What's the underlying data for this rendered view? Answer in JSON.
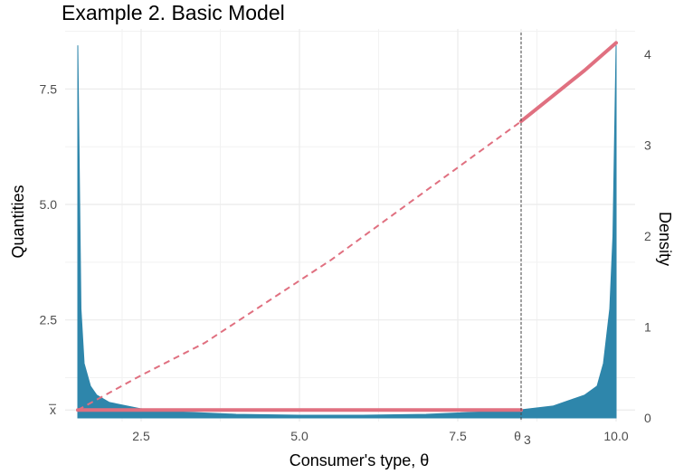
{
  "chart_data": {
    "type": "line",
    "title": "Example 2. Basic Model",
    "xlabel": "Consumer's type, θ",
    "ylabel": "Quantities",
    "ylabel_right": "Density",
    "xlim": [
      1.3,
      10.3
    ],
    "ylim": [
      0.3,
      8.8
    ],
    "ylim_right": [
      -0.04,
      4.28
    ],
    "x_ticks": [
      2.5,
      5.0,
      7.5,
      10.0
    ],
    "x_tick_labels": [
      "2.5",
      "5.0",
      "7.5",
      "10.0"
    ],
    "y_ticks": [
      2.5,
      5.0,
      7.5
    ],
    "y_tick_labels": [
      "2.5",
      "5.0",
      "7.5"
    ],
    "y_ticks_right": [
      0,
      1,
      2,
      3,
      4
    ],
    "y_tick_labels_right": [
      "0",
      "1",
      "2",
      "3",
      "4"
    ],
    "special_ticks": {
      "theta3": {
        "x": 8.5,
        "label": "θ",
        "subscript": "3"
      },
      "xbar": {
        "y": 0.55,
        "label": "x"
      }
    },
    "grid": true,
    "series": [
      {
        "role": "pooling-quantity",
        "style": "solid",
        "color": "#e07080",
        "x": [
          1.5,
          8.5
        ],
        "y": [
          0.55,
          0.55
        ]
      },
      {
        "role": "unconstrained-quantity-dashed",
        "style": "dashed",
        "color": "#e07080",
        "x": [
          1.5,
          2.5,
          3.5,
          4.5,
          5.5,
          6.5,
          7.5,
          8.5
        ],
        "y": [
          0.55,
          1.3,
          2.0,
          2.9,
          3.8,
          4.8,
          5.8,
          6.8
        ]
      },
      {
        "role": "separating-quantity",
        "style": "solid",
        "color": "#e07080",
        "x": [
          8.5,
          9.0,
          9.5,
          10.0
        ],
        "y": [
          6.8,
          7.35,
          7.9,
          8.5
        ]
      },
      {
        "role": "density",
        "style": "area",
        "color": "#2e86ab",
        "axis": "right",
        "x": [
          1.5,
          1.55,
          1.6,
          1.7,
          1.8,
          2.0,
          2.5,
          3.0,
          4.0,
          5.0,
          6.0,
          7.0,
          8.0,
          8.5,
          9.0,
          9.5,
          9.7,
          9.8,
          9.9,
          9.95,
          10.0
        ],
        "y": [
          4.1,
          1.2,
          0.6,
          0.35,
          0.25,
          0.17,
          0.1,
          0.07,
          0.04,
          0.03,
          0.03,
          0.04,
          0.07,
          0.09,
          0.13,
          0.25,
          0.35,
          0.6,
          1.2,
          2.0,
          4.1
        ]
      }
    ],
    "threshold_line": {
      "x": 8.5,
      "style": "dotted",
      "color": "#444444"
    }
  }
}
